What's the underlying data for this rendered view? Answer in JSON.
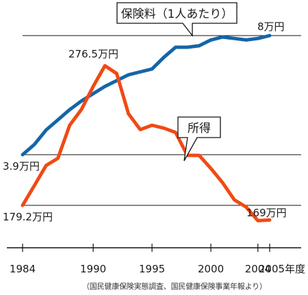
{
  "chart_data": {
    "type": "line",
    "x": [
      1984,
      1985,
      1986,
      1987,
      1988,
      1989,
      1990,
      1991,
      1992,
      1993,
      1994,
      1995,
      1996,
      1997,
      1998,
      1999,
      2000,
      2001,
      2002,
      2003,
      2004,
      2005
    ],
    "series": [
      {
        "name": "保険料（1人あたり）",
        "color": "#1565a8",
        "values": [
          3.9,
          4.25,
          4.75,
          5.1,
          5.45,
          5.75,
          6.0,
          6.25,
          6.45,
          6.65,
          6.75,
          6.85,
          7.25,
          7.6,
          7.6,
          7.65,
          7.85,
          7.95,
          7.9,
          7.85,
          7.9,
          8.0
        ]
      },
      {
        "name": "所得",
        "color": "#f04a14",
        "values": [
          179.2,
          193,
          207,
          212,
          235,
          246,
          262,
          276.5,
          271,
          243,
          232,
          235,
          233,
          230,
          214,
          214,
          205,
          195,
          183,
          178,
          168.5,
          169
        ]
      }
    ],
    "point_labels": [
      {
        "text": "3.9万円"
      },
      {
        "text": "179.2万円"
      },
      {
        "text": "276.5万円"
      },
      {
        "text": "8万円"
      },
      {
        "text": "169万円"
      }
    ],
    "x_ticks": [
      "1984",
      "1990",
      "1995",
      "2000",
      "2004",
      "2005年度"
    ],
    "reference_lines": 3,
    "callouts": [
      {
        "text": "保険料（1人あたり）"
      },
      {
        "text": "所得"
      }
    ],
    "source": "（国民健康保険実態調査、国民健康保険事業年報より）"
  }
}
